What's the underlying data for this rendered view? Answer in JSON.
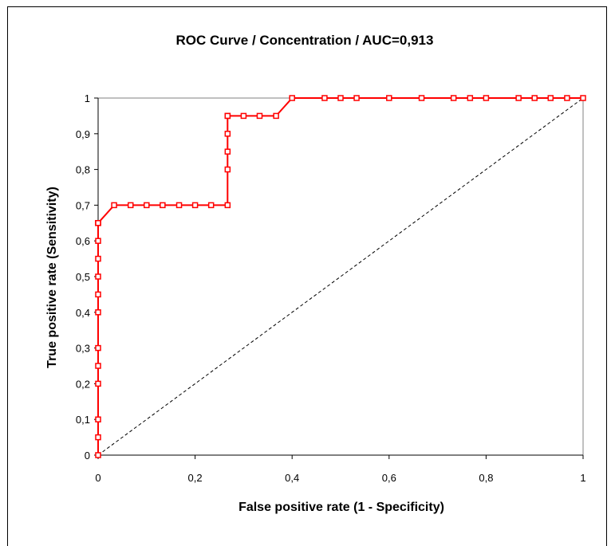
{
  "chart_data": {
    "type": "line",
    "title": "ROC Curve / Concentration / AUC=0,913",
    "xlabel": "False positive rate (1 - Specificity)",
    "ylabel": "True positive rate (Sensitivity)",
    "xlim": [
      0,
      1
    ],
    "ylim": [
      0,
      1
    ],
    "x_ticks": [
      "0",
      "0,2",
      "0,4",
      "0,6",
      "0,8",
      "1"
    ],
    "y_ticks": [
      "0",
      "0,1",
      "0,2",
      "0,3",
      "0,4",
      "0,5",
      "0,6",
      "0,7",
      "0,8",
      "0,9",
      "1"
    ],
    "grid": false,
    "legend": "none",
    "series": [
      {
        "color": "#ff0000",
        "marker": "square",
        "x": [
          0,
          0,
          0,
          0,
          0,
          0,
          0,
          0,
          0,
          0,
          0,
          0,
          0,
          0,
          0.033,
          0.067,
          0.1,
          0.133,
          0.167,
          0.2,
          0.233,
          0.267,
          0.267,
          0.267,
          0.267,
          0.267,
          0.267,
          0.3,
          0.333,
          0.367,
          0.4,
          0.467,
          0.5,
          0.533,
          0.6,
          0.667,
          0.733,
          0.767,
          0.8,
          0.867,
          0.9,
          0.933,
          0.967,
          1
        ],
        "y": [
          0,
          0.05,
          0.1,
          0.2,
          0.25,
          0.3,
          0.4,
          0.45,
          0.5,
          0.55,
          0.6,
          0.65,
          0.65,
          0.65,
          0.7,
          0.7,
          0.7,
          0.7,
          0.7,
          0.7,
          0.7,
          0.7,
          0.8,
          0.85,
          0.9,
          0.95,
          0.95,
          0.95,
          0.95,
          0.95,
          1,
          1,
          1,
          1,
          1,
          1,
          1,
          1,
          1,
          1,
          1,
          1,
          1,
          1
        ]
      },
      {
        "color": "#000000",
        "style": "dashed",
        "x": [
          0,
          1
        ],
        "y": [
          0,
          1
        ]
      }
    ]
  }
}
